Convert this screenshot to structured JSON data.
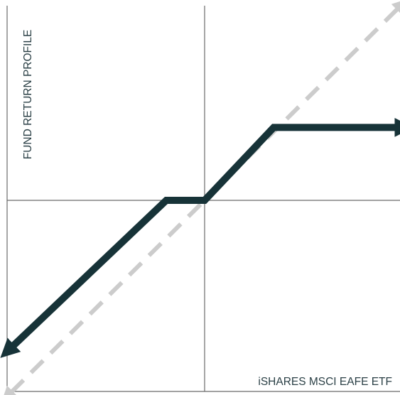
{
  "chart_data": {
    "type": "line",
    "xlabel": "iSHARES MSCI EAFE ETF",
    "ylabel": "FUND RETURN PROFILE",
    "xlim": [
      -1,
      1
    ],
    "ylim": [
      -1,
      1
    ],
    "grid": false,
    "series": [
      {
        "style": "dashed",
        "color": "#cccccc",
        "arrows": "both",
        "x": [
          -1,
          1
        ],
        "y": [
          -1,
          1
        ]
      },
      {
        "style": "solid",
        "color": "#173338",
        "arrows": "both",
        "x": [
          -1,
          -0.2,
          0,
          0.36,
          1
        ],
        "y": [
          -0.72,
          0,
          0,
          0.36,
          0.36
        ]
      }
    ]
  }
}
